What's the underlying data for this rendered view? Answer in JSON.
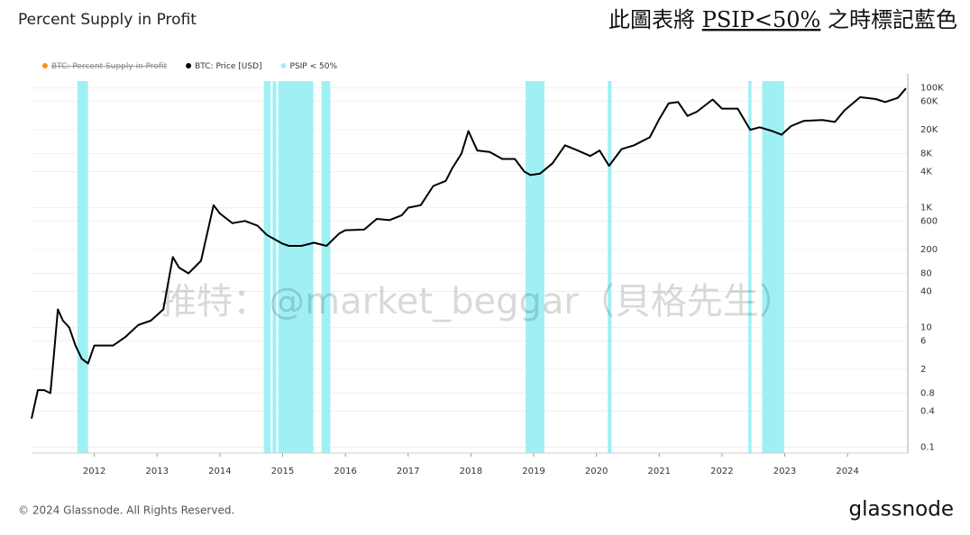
{
  "chart_data": {
    "type": "line",
    "title": "Percent Supply in Profit",
    "annotation": [
      "此圖表將 ",
      "PSIP<50%",
      " 之時標記藍色"
    ],
    "watermark": "推特：@market_beggar（貝格先生）",
    "footer": "© 2024 Glassnode. All Rights Reserved.",
    "logo": "glassnode",
    "log_scale": true,
    "grid": true,
    "legend": "top-left",
    "x": [
      2011.0,
      2011.1,
      2011.2,
      2011.3,
      2011.35,
      2011.42,
      2011.5,
      2011.6,
      2011.7,
      2011.8,
      2011.9,
      2012.0,
      2012.1,
      2012.3,
      2012.5,
      2012.7,
      2012.9,
      2013.1,
      2013.25,
      2013.35,
      2013.5,
      2013.7,
      2013.9,
      2014.0,
      2014.2,
      2014.4,
      2014.6,
      2014.75,
      2015.0,
      2015.1,
      2015.3,
      2015.5,
      2015.7,
      2015.9,
      2016.0,
      2016.3,
      2016.5,
      2016.7,
      2016.9,
      2017.0,
      2017.2,
      2017.4,
      2017.6,
      2017.7,
      2017.85,
      2017.96,
      2018.1,
      2018.3,
      2018.5,
      2018.7,
      2018.85,
      2018.95,
      2019.1,
      2019.3,
      2019.5,
      2019.7,
      2019.9,
      2020.05,
      2020.2,
      2020.4,
      2020.6,
      2020.85,
      2021.0,
      2021.15,
      2021.3,
      2021.45,
      2021.6,
      2021.85,
      2022.0,
      2022.25,
      2022.45,
      2022.6,
      2022.8,
      2022.95,
      2023.1,
      2023.3,
      2023.6,
      2023.8,
      2023.95,
      2024.2,
      2024.45,
      2024.6,
      2024.8,
      2024.93
    ],
    "series": [
      {
        "name": "BTC: Percent Supply in Profit",
        "color": "#f7931a",
        "hidden": true
      },
      {
        "name": "BTC: Price [USD]",
        "color": "#000000",
        "values": [
          0.3,
          0.9,
          0.9,
          0.8,
          3,
          20,
          13,
          10,
          5,
          3,
          2.5,
          5,
          5,
          5,
          7,
          11,
          13,
          20,
          150,
          100,
          80,
          130,
          1100,
          800,
          550,
          600,
          500,
          350,
          250,
          230,
          230,
          260,
          230,
          370,
          420,
          430,
          650,
          620,
          750,
          1000,
          1100,
          2300,
          2800,
          4500,
          8000,
          19000,
          9000,
          8500,
          6500,
          6500,
          4000,
          3500,
          3700,
          5500,
          11000,
          9000,
          7300,
          9000,
          5000,
          9500,
          11000,
          15000,
          30000,
          55000,
          58000,
          34000,
          40000,
          64000,
          45000,
          45000,
          20000,
          22000,
          19000,
          16500,
          23000,
          28000,
          29000,
          27000,
          42000,
          70000,
          65000,
          58000,
          68000,
          98000
        ]
      },
      {
        "name": "PSIP < 50%",
        "color": "#9ff0f5",
        "ranges": [
          [
            2011.73,
            2011.9
          ],
          [
            2014.7,
            2014.81
          ],
          [
            2014.84,
            2014.9
          ],
          [
            2014.93,
            2015.49
          ],
          [
            2015.62,
            2015.76
          ],
          [
            2018.87,
            2019.17
          ],
          [
            2020.18,
            2020.24
          ],
          [
            2022.42,
            2022.47
          ],
          [
            2022.64,
            2022.99
          ]
        ]
      }
    ],
    "xlim": [
      2011.0,
      2024.96
    ],
    "xticks": [
      2012,
      2013,
      2014,
      2015,
      2016,
      2017,
      2018,
      2019,
      2020,
      2021,
      2022,
      2023,
      2024
    ],
    "ylim": [
      0.08,
      130000
    ],
    "yticks": [
      {
        "value": 100000,
        "label": "100K"
      },
      {
        "value": 60000,
        "label": "60K"
      },
      {
        "value": 20000,
        "label": "20K"
      },
      {
        "value": 8000,
        "label": "8K"
      },
      {
        "value": 4000,
        "label": "4K"
      },
      {
        "value": 1000,
        "label": "1K"
      },
      600,
      200,
      80,
      40,
      10,
      6,
      2,
      0.8,
      0.4,
      0.1
    ]
  }
}
